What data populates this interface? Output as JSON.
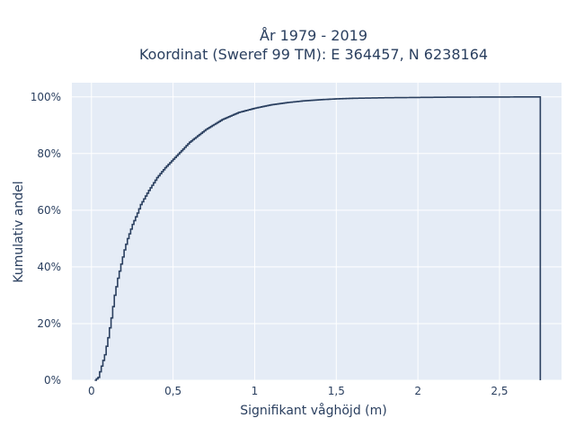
{
  "chart_data": {
    "type": "line",
    "subtype": "empirical-cdf-step",
    "title_lines": [
      "År 1979 - 2019",
      "Koordinat (Sweref 99 TM): E 364457, N 6238164"
    ],
    "xlabel": "Signifikant våghöjd (m)",
    "ylabel": "Kumulativ andel",
    "xlim": [
      -0.12,
      2.88
    ],
    "ylim": [
      0,
      1.05
    ],
    "x_ticks": [
      0,
      0.5,
      1,
      1.5,
      2,
      2.5
    ],
    "x_tick_labels": [
      "0",
      "0,5",
      "1",
      "1,5",
      "2",
      "2,5"
    ],
    "y_ticks": [
      0,
      0.2,
      0.4,
      0.6,
      0.8,
      1.0
    ],
    "y_tick_labels": [
      "0%",
      "20%",
      "40%",
      "60%",
      "80%",
      "100%"
    ],
    "grid": true,
    "line_color": "#2a3f5f",
    "plot_bg": "#e5ecf6",
    "series": [
      {
        "x": [
          0.02,
          0.04,
          0.06,
          0.08,
          0.1,
          0.12,
          0.14,
          0.16,
          0.18,
          0.2,
          0.22,
          0.25,
          0.28,
          0.3,
          0.35,
          0.4,
          0.45,
          0.5,
          0.55,
          0.6,
          0.7,
          0.8,
          0.9,
          1.0,
          1.1,
          1.2,
          1.3,
          1.4,
          1.5,
          1.6,
          1.8,
          2.0,
          2.2,
          2.5,
          2.74,
          2.75
        ],
        "y": [
          0.0,
          0.01,
          0.05,
          0.09,
          0.15,
          0.22,
          0.3,
          0.36,
          0.41,
          0.46,
          0.5,
          0.55,
          0.59,
          0.62,
          0.67,
          0.715,
          0.75,
          0.78,
          0.81,
          0.84,
          0.885,
          0.92,
          0.945,
          0.96,
          0.972,
          0.98,
          0.986,
          0.99,
          0.993,
          0.995,
          0.997,
          0.998,
          0.999,
          0.9995,
          1.0,
          0.0
        ]
      }
    ]
  }
}
